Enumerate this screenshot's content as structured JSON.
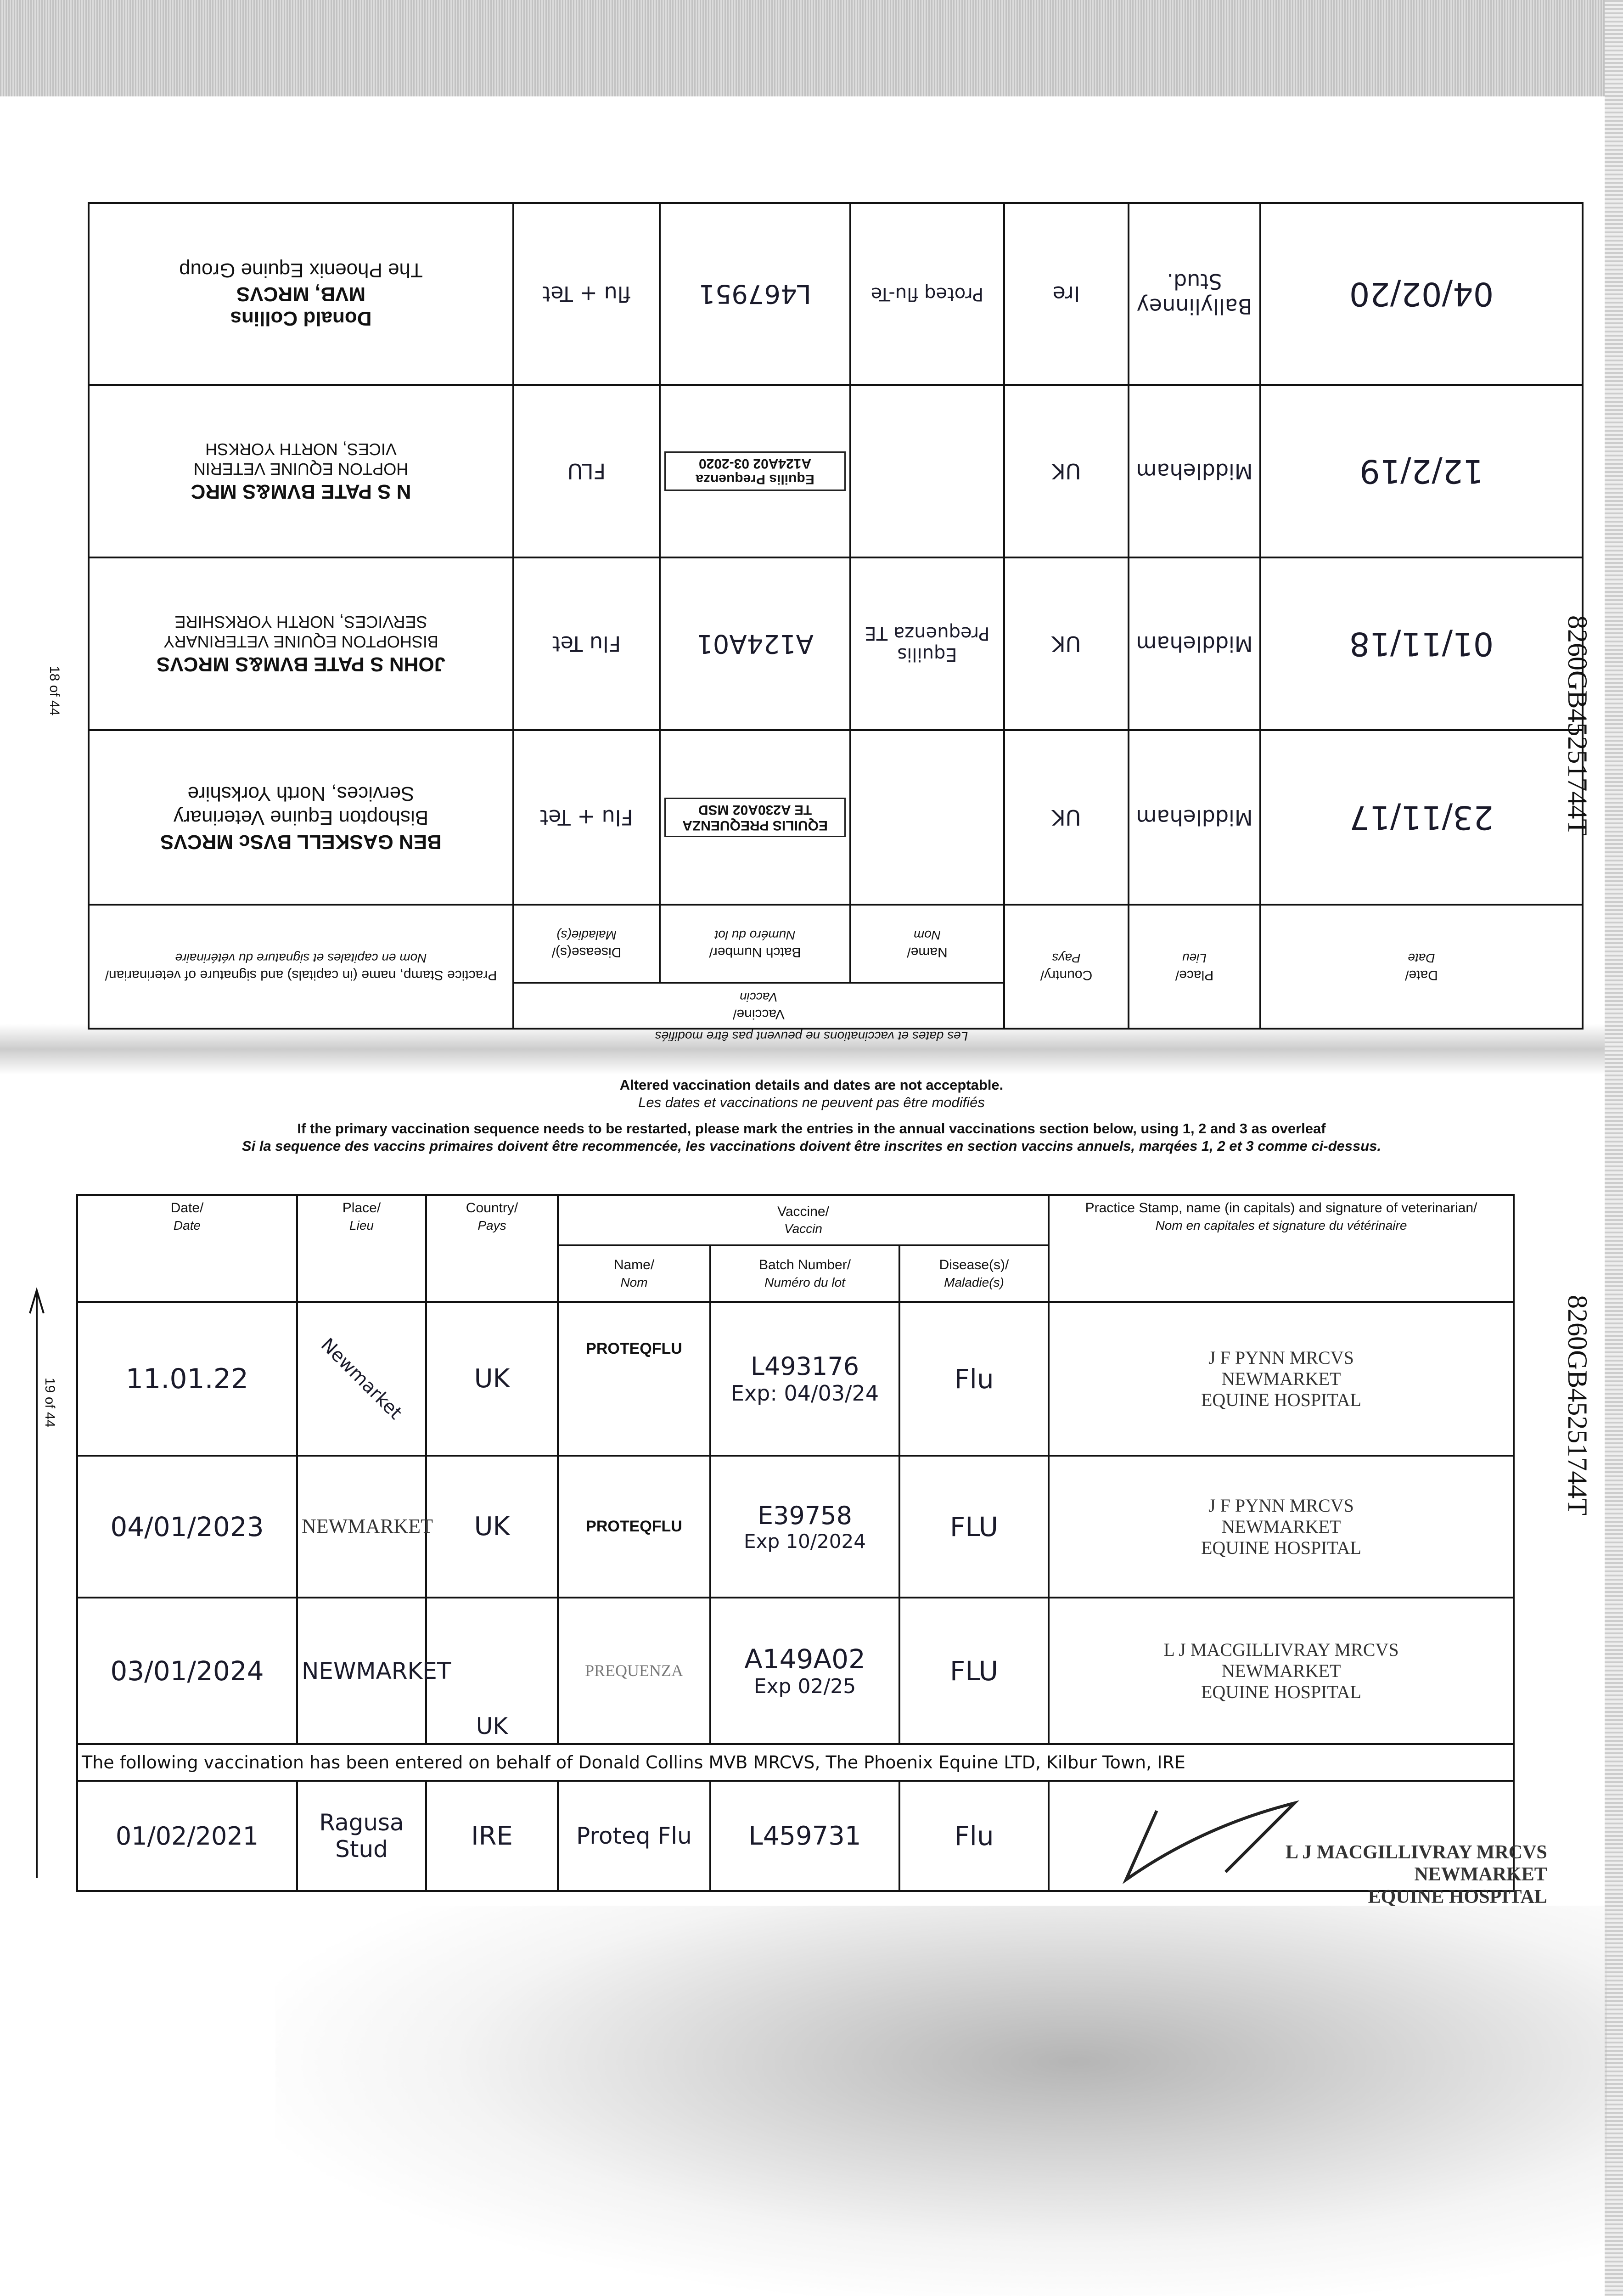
{
  "document_id": "8260GB45251744T",
  "top_page": {
    "page_number": "18 of 44",
    "header_note": "Les dates et vaccinations ne peuvent pas être modifiés",
    "headers": {
      "date": "Date/",
      "date_fr": "Date",
      "place": "Place/",
      "place_fr": "Lieu",
      "country": "Country/",
      "country_fr": "Pays",
      "vaccine": "Vaccine/",
      "vaccine_fr": "Vaccin",
      "name": "Name/",
      "name_fr": "Nom",
      "batch": "Batch Number/",
      "batch_fr": "Numéro du lot",
      "disease": "Disease(s)/",
      "disease_fr": "Maladie(s)",
      "stamp": "Practice Stamp, name (in capitals) and signature of veterinarian/",
      "stamp_fr": "Nom en capitales et signature du vétérinaire"
    },
    "rows": [
      {
        "date": "23/11/17",
        "place": "Middleham",
        "country": "UK",
        "name": "",
        "batch": "EQUILIS PREQUENZA TE A230A02 MSD",
        "disease": "Flu + Tet",
        "stamp": [
          "BEN GASKELL BVSc MRCVS",
          "Bishopton Equine Veterinary",
          "Services, North Yorkshire"
        ]
      },
      {
        "date": "01/11/18",
        "place": "Middleham",
        "country": "UK",
        "name": "Equilis Prequenza TE",
        "batch": "A124A01",
        "disease": "Flu Tet",
        "stamp": [
          "JOHN S PATE BVM&S MRCVS",
          "BISHOPTON EQUINE VETERINARY",
          "SERVICES, NORTH YORKSHIRE"
        ]
      },
      {
        "date": "12/2/19",
        "place": "Middleham",
        "country": "UK",
        "name": "",
        "batch": "Equilis Prequenza A124A02 03-2020",
        "disease": "FLU",
        "stamp": [
          "N S PATE BVM&S MRC",
          "HOPTON EQUINE VETERIN",
          "VICES, NORTH YORKSH"
        ]
      },
      {
        "date": "04/02/20",
        "place": "Ballylinney Stud.",
        "country": "Ire",
        "name": "Proteq flu-Te",
        "batch": "L467951",
        "disease": "flu + Tet",
        "stamp": [
          "Donald Collins",
          "MVB, MRCVS",
          "The Phoenix Equine Group"
        ]
      }
    ]
  },
  "bottom_page": {
    "page_number": "19 of 44",
    "notice_1": "Altered vaccination details and dates are not acceptable.",
    "notice_1_fr": "Les dates et vaccinations ne peuvent pas être modifiés",
    "notice_2": "If the primary vaccination sequence needs to be restarted, please mark the entries in the annual vaccinations section below, using 1, 2 and 3 as overleaf",
    "notice_2_fr": "Si la sequence des vaccins primaires doivent être recommencée, les vaccinations doivent être inscrites en section vaccins annuels, marqées 1, 2 et 3 comme ci-dessus.",
    "headers": {
      "date": "Date/",
      "date_fr": "Date",
      "place": "Place/",
      "place_fr": "Lieu",
      "country": "Country/",
      "country_fr": "Pays",
      "vaccine": "Vaccine/",
      "vaccine_fr": "Vaccin",
      "name": "Name/",
      "name_fr": "Nom",
      "batch": "Batch Number/",
      "batch_fr": "Numéro du lot",
      "disease": "Disease(s)/",
      "disease_fr": "Maladie(s)",
      "stamp": "Practice Stamp, name (in capitals) and signature of veterinarian/",
      "stamp_fr": "Nom en capitales et signature du vétérinaire"
    },
    "rows": [
      {
        "date": "11.01.22",
        "place": "Newmarket",
        "country": "UK",
        "name": "PROTEQFLU",
        "batch": "L493176",
        "batch_exp": "Exp: 04/03/24",
        "disease": "Flu",
        "stamp": [
          "J F PYNN MRCVS",
          "NEWMARKET",
          "EQUINE HOSPITAL"
        ]
      },
      {
        "date": "04/01/2023",
        "place": "NEWMARKET",
        "country": "UK",
        "name": "PROTEQFLU",
        "batch": "E39758",
        "batch_exp": "Exp 10/2024",
        "disease": "FLU",
        "stamp": [
          "J F PYNN MRCVS",
          "NEWMARKET",
          "EQUINE HOSPITAL"
        ]
      },
      {
        "date": "03/01/2024",
        "place": "NEWMARKET",
        "country": "UK",
        "name": "PREQUENZA",
        "batch": "A149A02",
        "batch_exp": "Exp 02/25",
        "disease": "FLU",
        "stamp": [
          "L J MACGILLIVRAY MRCVS",
          "NEWMARKET",
          "EQUINE HOSPITAL"
        ]
      }
    ],
    "note": "The following vaccination has been entered on behalf of Donald Collins MVB MRCVS, The Phoenix Equine LTD, Kilbur Town, IRE",
    "late_entry": {
      "date": "01/02/2021",
      "place": "Ragusa Stud",
      "country": "IRE",
      "name": "Proteq Flu",
      "batch": "L459731",
      "disease": "Flu",
      "stamp": [
        "L J MACGILLIVRAY MRCVS",
        "NEWMARKET",
        "EQUINE HOSPITAL"
      ]
    }
  }
}
